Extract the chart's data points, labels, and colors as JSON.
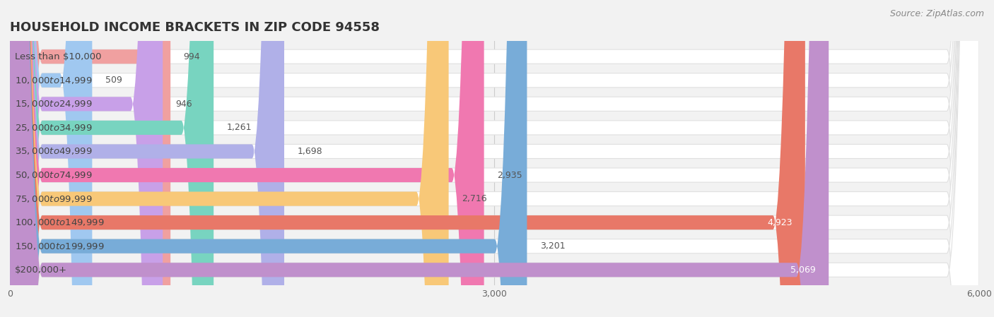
{
  "title": "HOUSEHOLD INCOME BRACKETS IN ZIP CODE 94558",
  "source": "Source: ZipAtlas.com",
  "categories": [
    "Less than $10,000",
    "$10,000 to $14,999",
    "$15,000 to $24,999",
    "$25,000 to $34,999",
    "$35,000 to $49,999",
    "$50,000 to $74,999",
    "$75,000 to $99,999",
    "$100,000 to $149,999",
    "$150,000 to $199,999",
    "$200,000+"
  ],
  "values": [
    994,
    509,
    946,
    1261,
    1698,
    2935,
    2716,
    4923,
    3201,
    5069
  ],
  "bar_colors": [
    "#f0a0a0",
    "#a0c8f0",
    "#c8a0e8",
    "#78d4c0",
    "#b0b0e8",
    "#f078b0",
    "#f8c878",
    "#e87868",
    "#78acd8",
    "#c090cc"
  ],
  "background_color": "#f2f2f2",
  "plot_bg_color": "#f2f2f2",
  "bar_bg_color": "#ffffff",
  "xlim": [
    0,
    6000
  ],
  "xticks": [
    0,
    3000,
    6000
  ],
  "title_fontsize": 13,
  "label_fontsize": 9.5,
  "value_fontsize": 9,
  "source_fontsize": 9
}
